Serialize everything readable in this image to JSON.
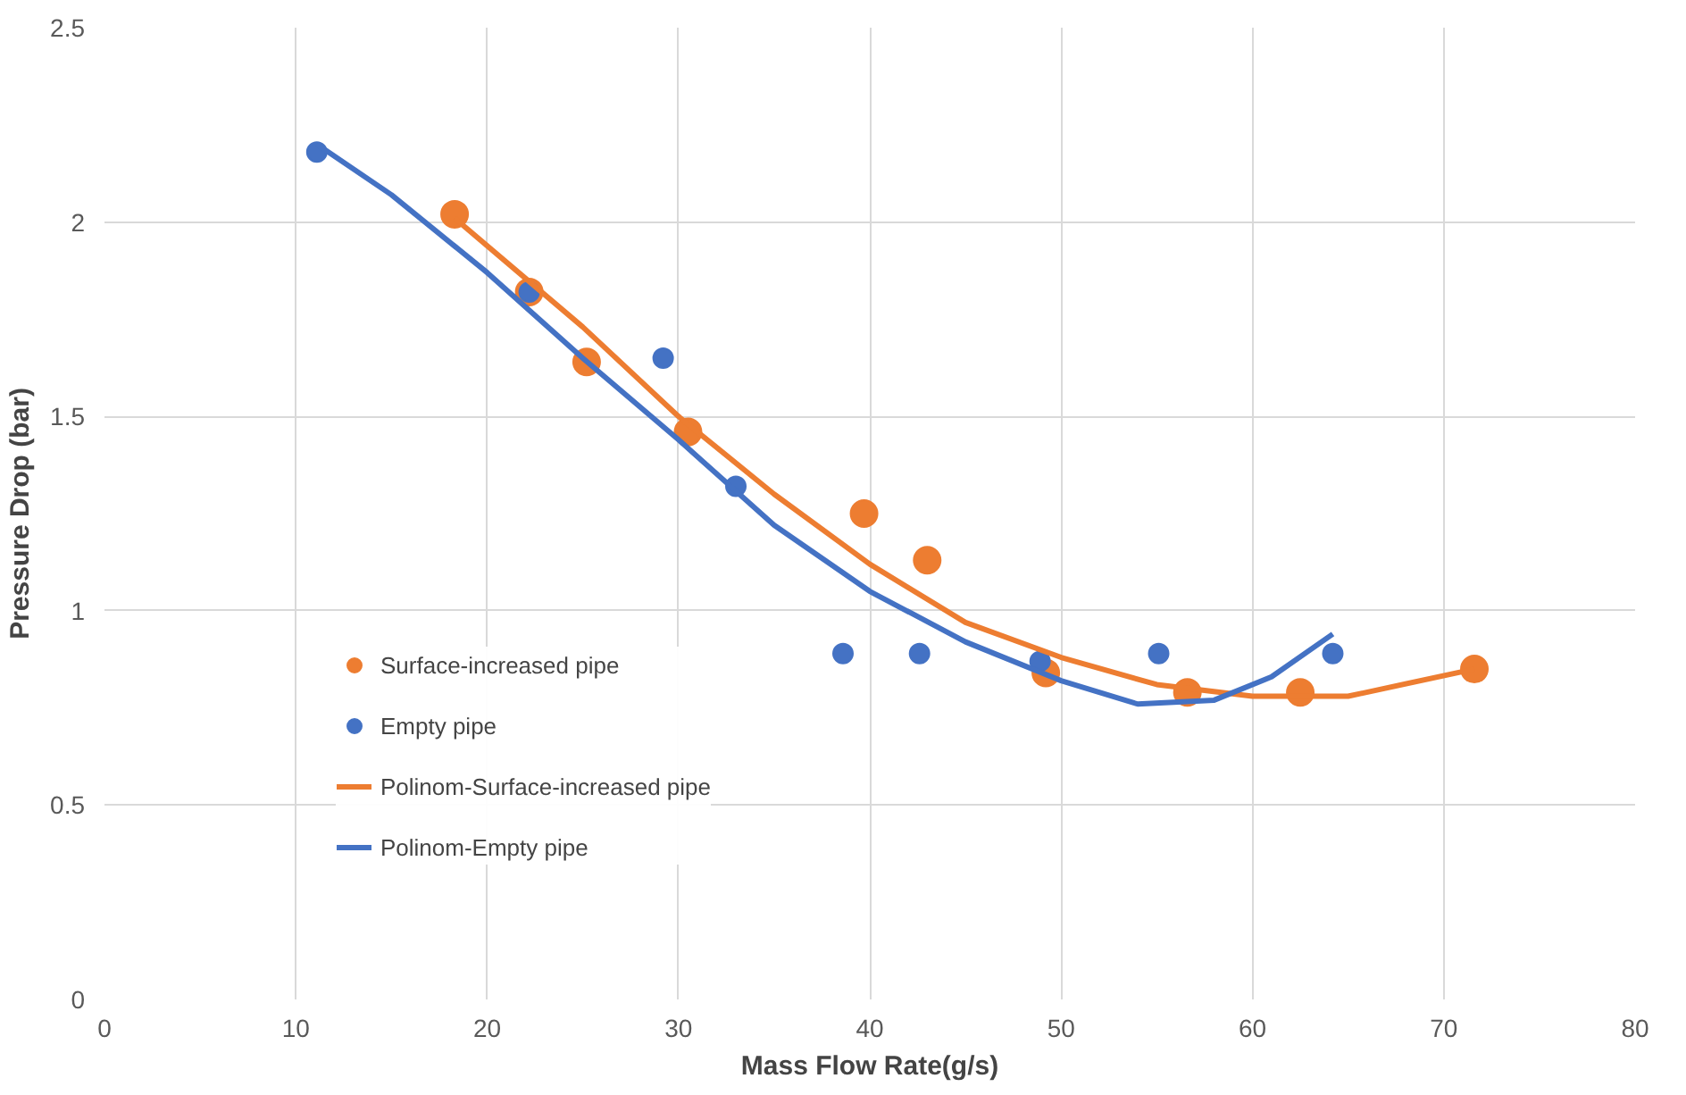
{
  "chart_data": {
    "type": "scatter",
    "xlabel": "Mass Flow Rate(g/s)",
    "ylabel": "Pressure Drop (bar)",
    "xlim": [
      0,
      80
    ],
    "xticks": [
      0,
      10,
      20,
      30,
      40,
      50,
      60,
      70,
      80
    ],
    "ylim": [
      0,
      2.5
    ],
    "yticks": [
      0,
      0.5,
      1,
      1.5,
      2,
      2.5
    ],
    "grid": true,
    "legend": "left",
    "series": [
      {
        "name": "Surface-increased pipe",
        "marker": "circle",
        "color": "#ed7d31",
        "x": [
          18.3,
          22.2,
          25.2,
          30.5,
          39.7,
          43.0,
          49.2,
          56.6,
          62.5,
          71.6
        ],
        "values": [
          2.02,
          1.82,
          1.64,
          1.46,
          1.25,
          1.13,
          0.84,
          0.79,
          0.79,
          0.85
        ]
      },
      {
        "name": "Empty pipe",
        "marker": "circle",
        "color": "#4472c4",
        "x": [
          11.1,
          22.2,
          29.2,
          33.0,
          38.6,
          42.6,
          48.9,
          55.1,
          64.2
        ],
        "values": [
          2.18,
          1.82,
          1.65,
          1.32,
          0.89,
          0.89,
          0.87,
          0.89,
          0.89
        ]
      },
      {
        "name": "Polinom-Surface-increased pipe",
        "type": "line",
        "marker": "none",
        "color": "#ed7d31",
        "x": [
          18.3,
          25,
          30,
          35,
          40,
          45,
          50,
          55,
          60,
          65,
          71.6
        ],
        "values": [
          2.01,
          1.73,
          1.5,
          1.3,
          1.12,
          0.97,
          0.88,
          0.81,
          0.78,
          0.78,
          0.85
        ]
      },
      {
        "name": "Polinom-Empty pipe",
        "type": "line",
        "marker": "none",
        "color": "#4472c4",
        "x": [
          11.1,
          15,
          20,
          25,
          30,
          35,
          40,
          45,
          50,
          54,
          58,
          61,
          64.2
        ],
        "values": [
          2.2,
          2.07,
          1.87,
          1.65,
          1.44,
          1.22,
          1.05,
          0.92,
          0.82,
          0.76,
          0.77,
          0.83,
          0.94
        ]
      }
    ]
  }
}
